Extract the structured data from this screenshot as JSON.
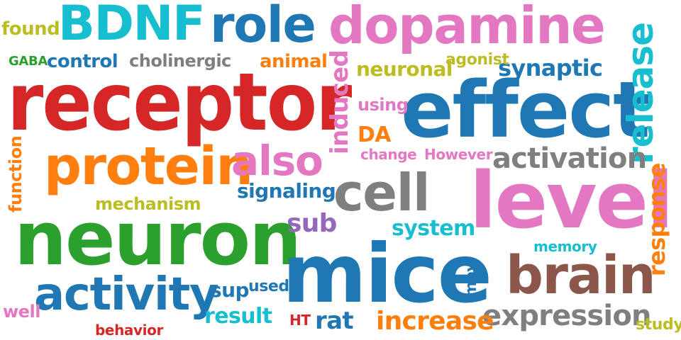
{
  "colors": {
    "red": "#d62728",
    "blue": "#1f77b4",
    "cyan": "#17becf",
    "green": "#2ca02c",
    "orange": "#ff7f0e",
    "pink": "#e377c2",
    "gray": "#7f7f7f",
    "brown": "#8c564b",
    "olive": "#bcbd22",
    "purple": "#9467bd"
  },
  "words": [
    {
      "text": "receptor",
      "color": "red"
    },
    {
      "text": "effect",
      "color": "blue"
    },
    {
      "text": "level",
      "color": "pink"
    },
    {
      "text": "neuron",
      "color": "green"
    },
    {
      "text": "mice",
      "color": "blue"
    },
    {
      "text": "protein",
      "color": "orange"
    },
    {
      "text": "dopamine",
      "color": "pink"
    },
    {
      "text": "BDNF",
      "color": "cyan"
    },
    {
      "text": "role",
      "color": "blue"
    },
    {
      "text": "cell",
      "color": "gray"
    },
    {
      "text": "brain",
      "color": "brown"
    },
    {
      "text": "activity",
      "color": "blue"
    },
    {
      "text": "release",
      "color": "cyan"
    },
    {
      "text": "also",
      "color": "pink"
    },
    {
      "text": "activation",
      "color": "gray"
    },
    {
      "text": "expression",
      "color": "gray"
    },
    {
      "text": "induced",
      "color": "pink"
    },
    {
      "text": "response",
      "color": "orange"
    },
    {
      "text": "increase",
      "color": "orange"
    },
    {
      "text": "synaptic",
      "color": "blue"
    },
    {
      "text": "neuronal",
      "color": "olive"
    },
    {
      "text": "signaling",
      "color": "blue"
    },
    {
      "text": "system",
      "color": "cyan"
    },
    {
      "text": "sub",
      "color": "purple"
    },
    {
      "text": "result",
      "color": "cyan"
    },
    {
      "text": "control",
      "color": "blue"
    },
    {
      "text": "cholinergic",
      "color": "gray"
    },
    {
      "text": "animal",
      "color": "orange"
    },
    {
      "text": "agonist",
      "color": "olive"
    },
    {
      "text": "found",
      "color": "olive"
    },
    {
      "text": "GABA",
      "color": "green"
    },
    {
      "text": "using",
      "color": "pink"
    },
    {
      "text": "DA",
      "color": "orange"
    },
    {
      "text": "change",
      "color": "pink"
    },
    {
      "text": "However",
      "color": "pink"
    },
    {
      "text": "function",
      "color": "orange"
    },
    {
      "text": "mechanism",
      "color": "olive"
    },
    {
      "text": "memory",
      "color": "cyan"
    },
    {
      "text": "may",
      "color": "blue"
    },
    {
      "text": "sup",
      "color": "blue"
    },
    {
      "text": "used",
      "color": "blue"
    },
    {
      "text": "well",
      "color": "pink"
    },
    {
      "text": "behavior",
      "color": "red"
    },
    {
      "text": "HT",
      "color": "red"
    },
    {
      "text": "rat",
      "color": "blue"
    },
    {
      "text": "study",
      "color": "olive"
    }
  ]
}
